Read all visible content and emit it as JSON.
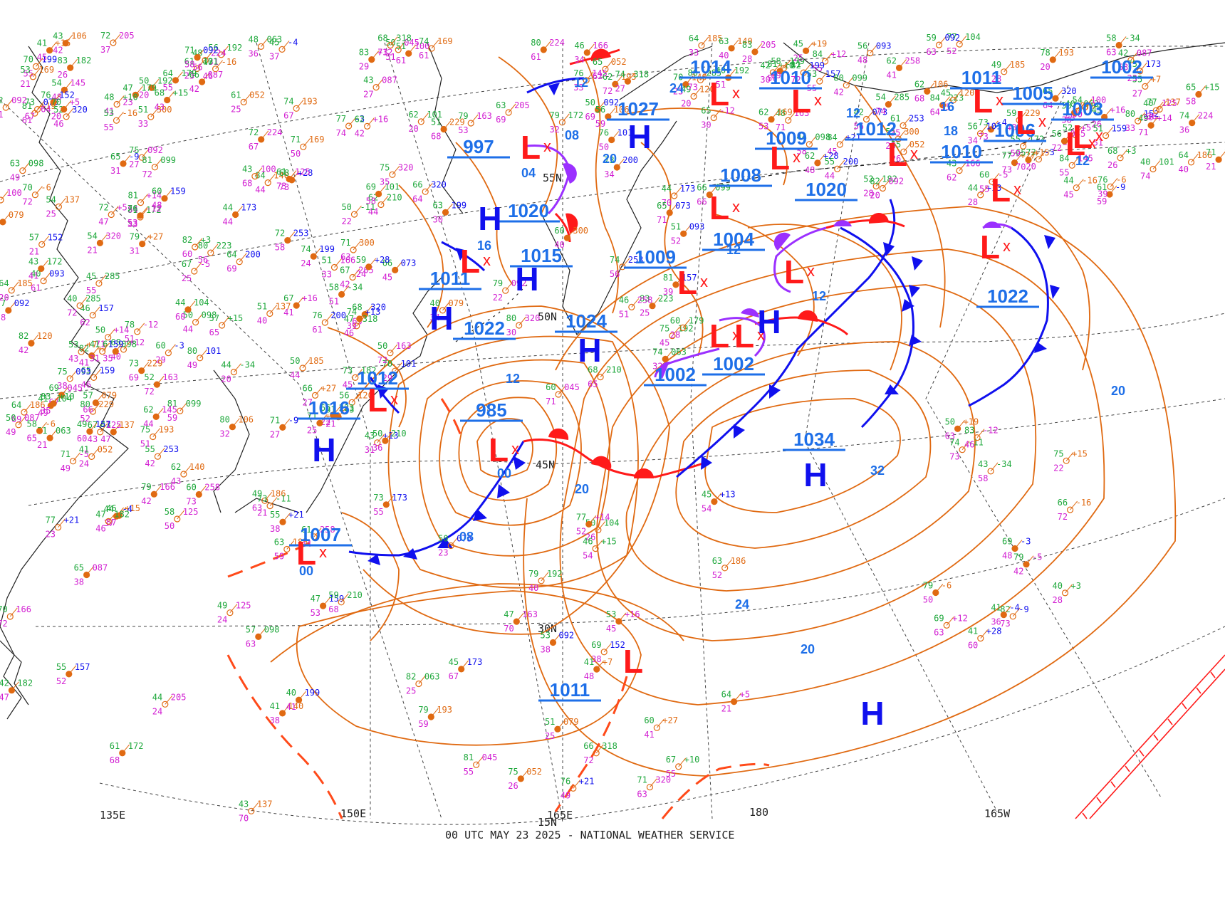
{
  "footer": "00 UTC MAY 23 2025 - NATIONAL WEATHER SERVICE",
  "grid_labels": {
    "lat_45": "45N",
    "lat_30": "30N",
    "lat_15": "15N",
    "lat_55": "55N",
    "lat_50": "50N",
    "lon_135E": "135E",
    "lon_150E": "150E",
    "lon_165E": "165E",
    "lon_180": "180",
    "lon_165W": "165W"
  },
  "pressure_centers": [
    {
      "type": "L",
      "value": "985"
    },
    {
      "type": "L",
      "value": "997"
    },
    {
      "type": "L",
      "value": "1011"
    },
    {
      "type": "L",
      "value": "1012"
    },
    {
      "type": "L",
      "value": "1007"
    },
    {
      "type": "L",
      "value": "1009"
    },
    {
      "type": "L",
      "value": "1004"
    },
    {
      "type": "L",
      "value": "1002"
    },
    {
      "type": "L",
      "value": "1002"
    },
    {
      "type": "L",
      "value": "1014"
    },
    {
      "type": "L",
      "value": "1010"
    },
    {
      "type": "L",
      "value": "1009"
    },
    {
      "type": "L",
      "value": "1008"
    },
    {
      "type": "L",
      "value": "1012"
    },
    {
      "type": "L",
      "value": "1010"
    },
    {
      "type": "L",
      "value": "1006"
    },
    {
      "type": "L",
      "value": "1003"
    },
    {
      "type": "L",
      "value": "1005"
    },
    {
      "type": "L",
      "value": "1011"
    },
    {
      "type": "L",
      "value": "1002"
    },
    {
      "type": "H",
      "value": "1034"
    },
    {
      "type": "H",
      "value": "1024"
    },
    {
      "type": "H",
      "value": "1027"
    },
    {
      "type": "H",
      "value": "1016"
    },
    {
      "type": "H",
      "value": "1022"
    },
    {
      "type": "H",
      "value": "1020"
    },
    {
      "type": "H",
      "value": "1015"
    },
    {
      "type": "H",
      "value": "1022"
    },
    {
      "type": "H",
      "value": "1020"
    },
    {
      "type": "H",
      "value": "1011"
    }
  ],
  "isobar_labels": [
    "32",
    "24",
    "20",
    "20",
    "20",
    "12",
    "12",
    "12",
    "12",
    "08",
    "08",
    "04",
    "00",
    "00",
    "20",
    "16",
    "16",
    "24",
    "12",
    "12",
    "18"
  ],
  "symbols": {
    "high_letter": "H",
    "low_letter": "L",
    "low_cross": "x"
  },
  "colors": {
    "isobar": "#e06a12",
    "label_blue": "#1e6fe8",
    "low_red": "#ff1a1a",
    "cold_front": "#1010ee",
    "warm_front": "#ff1a1a",
    "occluded_front": "#9b30ff",
    "trough": "#ff4a1a",
    "grid": "#444444",
    "coast": "#222222",
    "station_green": "#1fa83c",
    "station_magenta": "#d21fd2",
    "station_orange": "#e06a12"
  },
  "stations_sample": [
    "098",
    "087",
    "137",
    "159",
    "182",
    "125",
    "140",
    "157",
    "172",
    "205",
    "185",
    "199",
    "210",
    "166",
    "193",
    "173",
    "192",
    "163",
    "079",
    "073",
    "063",
    "045",
    "052",
    "092",
    "101",
    "092",
    "106",
    "093",
    "099",
    "100",
    "169",
    "200",
    "223",
    "258",
    "300",
    "320",
    "179",
    "145",
    "120",
    "101",
    "285",
    "224",
    "229",
    "253",
    "318",
    "320",
    "186",
    "152",
    "104",
    "+5",
    "+7",
    "+13",
    "+10",
    "+14",
    "+27",
    "+21",
    "+15",
    "+16",
    "+19",
    "+28",
    "-11",
    "-12",
    "-16",
    "-9",
    "-34",
    "-5",
    "-6",
    "-3",
    "+3",
    "+12",
    "+15",
    "-4"
  ]
}
